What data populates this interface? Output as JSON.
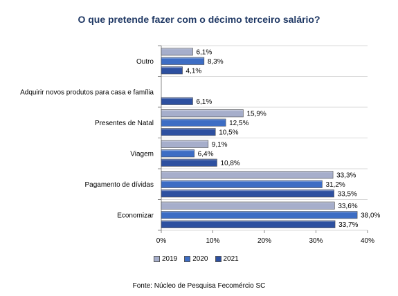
{
  "chart_data": {
    "type": "bar",
    "orientation": "horizontal",
    "title": "O que pretende fazer com o décimo terceiro salário?",
    "categories": [
      "Outro",
      "Adquirir novos produtos para casa e família",
      "Presentes de Natal",
      "Viagem",
      "Pagamento de dívidas",
      "Economizar"
    ],
    "series": [
      {
        "name": "2019",
        "color": "#a6aecb",
        "values": [
          6.1,
          null,
          15.9,
          9.1,
          33.3,
          33.6
        ],
        "labels": [
          "6,1%",
          "",
          "15,9%",
          "9,1%",
          "33,3%",
          "33,6%"
        ]
      },
      {
        "name": "2020",
        "color": "#3d6dc4",
        "values": [
          8.3,
          null,
          12.5,
          6.4,
          31.2,
          38.0
        ],
        "labels": [
          "8,3%",
          "",
          "12,5%",
          "6,4%",
          "31,2%",
          "38,0%"
        ]
      },
      {
        "name": "2021",
        "color": "#2d50a0",
        "values": [
          4.1,
          6.1,
          10.5,
          10.8,
          33.5,
          33.7
        ],
        "labels": [
          "4,1%",
          "6,1%",
          "10,5%",
          "10,8%",
          "33,5%",
          "33,7%"
        ]
      }
    ],
    "xlim": [
      0,
      40
    ],
    "xticks": [
      0,
      10,
      20,
      30,
      40
    ],
    "xtick_labels": [
      "0%",
      "10%",
      "20%",
      "30%",
      "40%"
    ],
    "legend_position": "bottom"
  },
  "source": "Fonte: Núcleo de Pesquisa Fecomércio SC"
}
